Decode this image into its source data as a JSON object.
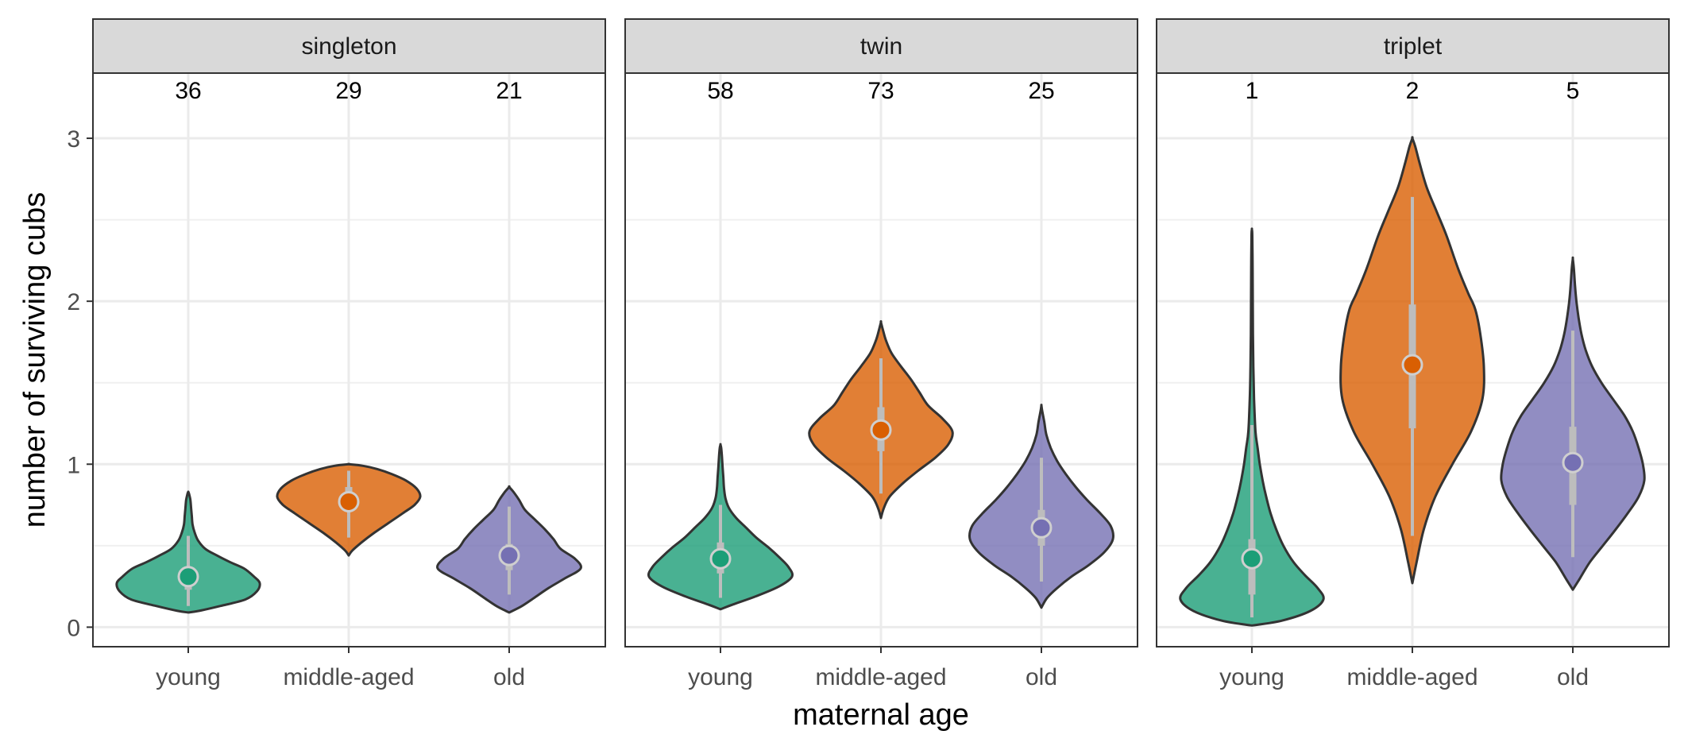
{
  "chart_data": {
    "type": "violin",
    "xlabel": "maternal age",
    "ylabel": "number of surviving cubs",
    "ylim": [
      -0.12,
      3.4
    ],
    "yticks": [
      0,
      1,
      2,
      3
    ],
    "categories": [
      "young",
      "middle-aged",
      "old"
    ],
    "colors": {
      "young": "#1b9e77",
      "middle-aged": "#d95f02",
      "old": "#7570b3"
    },
    "grid": true,
    "panels": [
      {
        "name": "singleton",
        "groups": [
          {
            "category": "young",
            "n": "36",
            "median": 0.31,
            "q1": 0.23,
            "q3": 0.36,
            "lo": 0.13,
            "hi": 0.56,
            "density": [
              [
                0.09,
                0.0
              ],
              [
                0.1,
                0.15
              ],
              [
                0.13,
                0.45
              ],
              [
                0.17,
                0.8
              ],
              [
                0.22,
                0.96
              ],
              [
                0.27,
                1.0
              ],
              [
                0.31,
                0.92
              ],
              [
                0.36,
                0.78
              ],
              [
                0.4,
                0.58
              ],
              [
                0.44,
                0.4
              ],
              [
                0.48,
                0.24
              ],
              [
                0.53,
                0.14
              ],
              [
                0.58,
                0.09
              ],
              [
                0.63,
                0.06
              ],
              [
                0.68,
                0.05
              ],
              [
                0.73,
                0.04
              ],
              [
                0.78,
                0.03
              ],
              [
                0.82,
                0.01
              ],
              [
                0.83,
                0.0
              ]
            ]
          },
          {
            "category": "middle-aged",
            "n": "29",
            "median": 0.77,
            "q1": 0.72,
            "q3": 0.86,
            "lo": 0.55,
            "hi": 0.96,
            "density": [
              [
                0.44,
                0.0
              ],
              [
                0.47,
                0.05
              ],
              [
                0.52,
                0.18
              ],
              [
                0.58,
                0.36
              ],
              [
                0.64,
                0.56
              ],
              [
                0.7,
                0.76
              ],
              [
                0.75,
                0.92
              ],
              [
                0.8,
                1.0
              ],
              [
                0.85,
                0.95
              ],
              [
                0.9,
                0.8
              ],
              [
                0.94,
                0.6
              ],
              [
                0.97,
                0.4
              ],
              [
                0.99,
                0.2
              ],
              [
                1.0,
                0.0
              ]
            ]
          },
          {
            "category": "old",
            "n": "21",
            "median": 0.44,
            "q1": 0.35,
            "q3": 0.51,
            "lo": 0.2,
            "hi": 0.74,
            "density": [
              [
                0.09,
                0.0
              ],
              [
                0.13,
                0.18
              ],
              [
                0.18,
                0.35
              ],
              [
                0.24,
                0.55
              ],
              [
                0.3,
                0.78
              ],
              [
                0.36,
                1.0
              ],
              [
                0.42,
                0.92
              ],
              [
                0.48,
                0.72
              ],
              [
                0.54,
                0.62
              ],
              [
                0.6,
                0.5
              ],
              [
                0.66,
                0.36
              ],
              [
                0.72,
                0.22
              ],
              [
                0.78,
                0.14
              ],
              [
                0.83,
                0.06
              ],
              [
                0.86,
                0.0
              ]
            ]
          }
        ]
      },
      {
        "name": "twin",
        "groups": [
          {
            "category": "young",
            "n": "58",
            "median": 0.42,
            "q1": 0.33,
            "q3": 0.52,
            "lo": 0.18,
            "hi": 0.75,
            "density": [
              [
                0.11,
                0.0
              ],
              [
                0.14,
                0.18
              ],
              [
                0.19,
                0.5
              ],
              [
                0.25,
                0.82
              ],
              [
                0.31,
                1.0
              ],
              [
                0.37,
                0.95
              ],
              [
                0.43,
                0.82
              ],
              [
                0.49,
                0.67
              ],
              [
                0.55,
                0.5
              ],
              [
                0.61,
                0.36
              ],
              [
                0.67,
                0.22
              ],
              [
                0.73,
                0.12
              ],
              [
                0.79,
                0.07
              ],
              [
                0.85,
                0.05
              ],
              [
                0.92,
                0.04
              ],
              [
                0.98,
                0.03
              ],
              [
                1.05,
                0.02
              ],
              [
                1.1,
                0.01
              ],
              [
                1.12,
                0.0
              ]
            ]
          },
          {
            "category": "middle-aged",
            "n": "73",
            "median": 1.21,
            "q1": 1.08,
            "q3": 1.35,
            "lo": 0.82,
            "hi": 1.65,
            "density": [
              [
                0.67,
                0.0
              ],
              [
                0.73,
                0.04
              ],
              [
                0.8,
                0.12
              ],
              [
                0.88,
                0.3
              ],
              [
                0.96,
                0.52
              ],
              [
                1.04,
                0.76
              ],
              [
                1.12,
                0.94
              ],
              [
                1.2,
                1.0
              ],
              [
                1.28,
                0.86
              ],
              [
                1.36,
                0.66
              ],
              [
                1.44,
                0.54
              ],
              [
                1.52,
                0.42
              ],
              [
                1.6,
                0.28
              ],
              [
                1.68,
                0.15
              ],
              [
                1.76,
                0.07
              ],
              [
                1.82,
                0.03
              ],
              [
                1.87,
                0.0
              ]
            ]
          },
          {
            "category": "old",
            "n": "25",
            "median": 0.61,
            "q1": 0.5,
            "q3": 0.72,
            "lo": 0.28,
            "hi": 1.04,
            "density": [
              [
                0.12,
                0.0
              ],
              [
                0.18,
                0.08
              ],
              [
                0.24,
                0.22
              ],
              [
                0.31,
                0.42
              ],
              [
                0.38,
                0.66
              ],
              [
                0.46,
                0.88
              ],
              [
                0.54,
                1.0
              ],
              [
                0.62,
                0.97
              ],
              [
                0.7,
                0.82
              ],
              [
                0.78,
                0.64
              ],
              [
                0.86,
                0.48
              ],
              [
                0.94,
                0.34
              ],
              [
                1.02,
                0.22
              ],
              [
                1.1,
                0.13
              ],
              [
                1.18,
                0.07
              ],
              [
                1.26,
                0.04
              ],
              [
                1.33,
                0.01
              ],
              [
                1.36,
                0.0
              ]
            ]
          }
        ]
      },
      {
        "name": "triplet",
        "groups": [
          {
            "category": "young",
            "n": "1",
            "median": 0.42,
            "q1": 0.2,
            "q3": 0.54,
            "lo": 0.06,
            "hi": 1.24,
            "density": [
              [
                0.01,
                0.0
              ],
              [
                0.04,
                0.42
              ],
              [
                0.1,
                0.82
              ],
              [
                0.17,
                1.0
              ],
              [
                0.24,
                0.92
              ],
              [
                0.32,
                0.74
              ],
              [
                0.4,
                0.58
              ],
              [
                0.5,
                0.44
              ],
              [
                0.6,
                0.34
              ],
              [
                0.7,
                0.26
              ],
              [
                0.8,
                0.2
              ],
              [
                0.9,
                0.15
              ],
              [
                1.0,
                0.11
              ],
              [
                1.1,
                0.08
              ],
              [
                1.2,
                0.05
              ],
              [
                1.4,
                0.03
              ],
              [
                1.6,
                0.02
              ],
              [
                1.8,
                0.015
              ],
              [
                2.0,
                0.012
              ],
              [
                2.2,
                0.01
              ],
              [
                2.4,
                0.006
              ],
              [
                2.44,
                0.0
              ]
            ]
          },
          {
            "category": "middle-aged",
            "n": "2",
            "median": 1.61,
            "q1": 1.22,
            "q3": 1.98,
            "lo": 0.56,
            "hi": 2.64,
            "density": [
              [
                0.27,
                0.0
              ],
              [
                0.4,
                0.06
              ],
              [
                0.6,
                0.16
              ],
              [
                0.8,
                0.32
              ],
              [
                1.0,
                0.56
              ],
              [
                1.2,
                0.82
              ],
              [
                1.4,
                0.98
              ],
              [
                1.6,
                1.0
              ],
              [
                1.8,
                0.95
              ],
              [
                1.95,
                0.88
              ],
              [
                2.05,
                0.78
              ],
              [
                2.2,
                0.64
              ],
              [
                2.4,
                0.48
              ],
              [
                2.55,
                0.34
              ],
              [
                2.7,
                0.2
              ],
              [
                2.85,
                0.1
              ],
              [
                2.95,
                0.04
              ],
              [
                3.0,
                0.0
              ]
            ]
          },
          {
            "category": "old",
            "n": "5",
            "median": 1.01,
            "q1": 0.75,
            "q3": 1.23,
            "lo": 0.43,
            "hi": 1.82,
            "density": [
              [
                0.23,
                0.0
              ],
              [
                0.3,
                0.1
              ],
              [
                0.4,
                0.24
              ],
              [
                0.5,
                0.42
              ],
              [
                0.6,
                0.6
              ],
              [
                0.7,
                0.77
              ],
              [
                0.8,
                0.92
              ],
              [
                0.9,
                1.0
              ],
              [
                1.0,
                0.98
              ],
              [
                1.1,
                0.92
              ],
              [
                1.2,
                0.84
              ],
              [
                1.3,
                0.72
              ],
              [
                1.4,
                0.56
              ],
              [
                1.5,
                0.4
              ],
              [
                1.6,
                0.27
              ],
              [
                1.7,
                0.18
              ],
              [
                1.8,
                0.12
              ],
              [
                1.9,
                0.08
              ],
              [
                2.0,
                0.05
              ],
              [
                2.1,
                0.03
              ],
              [
                2.2,
                0.015
              ],
              [
                2.26,
                0.0
              ]
            ]
          }
        ]
      }
    ]
  }
}
